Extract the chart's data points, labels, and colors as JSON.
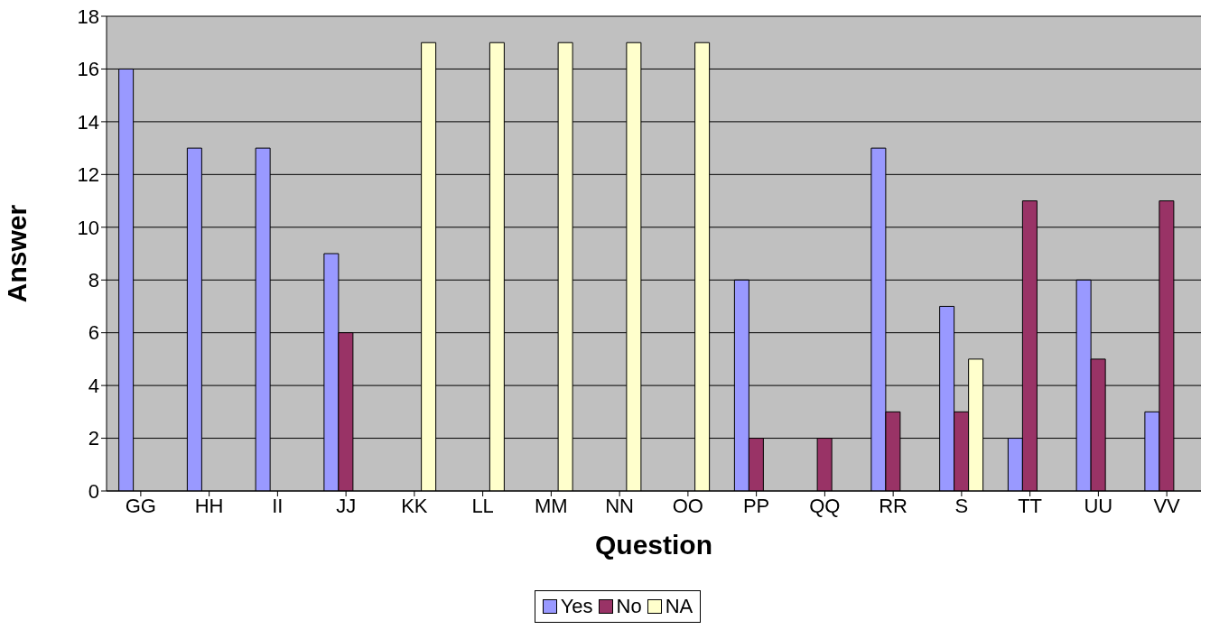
{
  "chart_data": {
    "type": "bar",
    "xlabel": "Question",
    "ylabel": "Answer",
    "categories": [
      "GG",
      "HH",
      "II",
      "JJ",
      "KK",
      "LL",
      "MM",
      "NN",
      "OO",
      "PP",
      "QQ",
      "RR",
      "S",
      "TT",
      "UU",
      "VV"
    ],
    "series": [
      {
        "name": "Yes",
        "color": "#9999ff",
        "values": [
          16,
          13,
          13,
          9,
          null,
          null,
          null,
          null,
          null,
          8,
          null,
          13,
          7,
          2,
          8,
          3
        ]
      },
      {
        "name": "No",
        "color": "#993366",
        "values": [
          null,
          null,
          null,
          6,
          null,
          null,
          null,
          null,
          null,
          2,
          2,
          3,
          3,
          11,
          5,
          11
        ]
      },
      {
        "name": "NA",
        "color": "#ffffcc",
        "values": [
          null,
          null,
          null,
          null,
          17,
          17,
          17,
          17,
          17,
          null,
          null,
          null,
          5,
          null,
          null,
          null
        ]
      }
    ],
    "ylim": [
      0,
      18
    ],
    "yticks": [
      0,
      2,
      4,
      6,
      8,
      10,
      12,
      14,
      16,
      18
    ],
    "grid": "y",
    "legend": "bottom"
  }
}
